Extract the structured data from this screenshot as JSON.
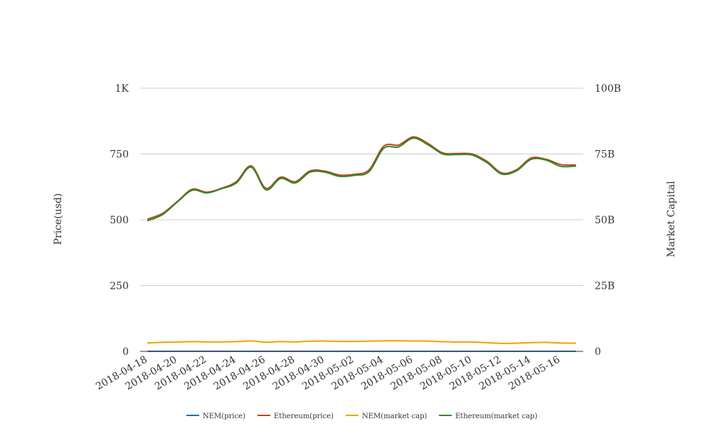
{
  "chart_data": {
    "type": "line",
    "title": "",
    "xlabel": "",
    "ylabel_left": "Price(usd)",
    "ylabel_right": "Market Capital",
    "y_left": {
      "min": 0,
      "max": 1000,
      "ticks": [
        0,
        250,
        500,
        750,
        1000
      ],
      "tick_labels": [
        "0",
        "250",
        "500",
        "750",
        "1K"
      ]
    },
    "y_right": {
      "min": 0,
      "max": 100000000000,
      "ticks": [
        0,
        25000000000,
        50000000000,
        75000000000,
        100000000000
      ],
      "tick_labels": [
        "0",
        "25B",
        "50B",
        "75B",
        "100B"
      ]
    },
    "grid": true,
    "legend_position": "bottom",
    "x": [
      "2018-04-18",
      "2018-04-19",
      "2018-04-20",
      "2018-04-21",
      "2018-04-22",
      "2018-04-23",
      "2018-04-24",
      "2018-04-25",
      "2018-04-26",
      "2018-04-27",
      "2018-04-28",
      "2018-04-29",
      "2018-04-30",
      "2018-05-01",
      "2018-05-02",
      "2018-05-03",
      "2018-05-04",
      "2018-05-05",
      "2018-05-06",
      "2018-05-07",
      "2018-05-08",
      "2018-05-09",
      "2018-05-10",
      "2018-05-11",
      "2018-05-12",
      "2018-05-13",
      "2018-05-14",
      "2018-05-15",
      "2018-05-16",
      "2018-05-17"
    ],
    "x_tick_labels": [
      "2018-04-18",
      "2018-04-20",
      "2018-04-22",
      "2018-04-24",
      "2018-04-26",
      "2018-04-28",
      "2018-04-30",
      "2018-05-02",
      "2018-05-04",
      "2018-05-06",
      "2018-05-08",
      "2018-05-10",
      "2018-05-12",
      "2018-05-14",
      "2018-05-16"
    ],
    "series": [
      {
        "name": "NEM(price)",
        "color": "#2f6aa0",
        "axis": "left",
        "values": [
          0.32,
          0.33,
          0.35,
          0.37,
          0.36,
          0.36,
          0.38,
          0.4,
          0.36,
          0.38,
          0.37,
          0.39,
          0.39,
          0.38,
          0.38,
          0.39,
          0.4,
          0.4,
          0.4,
          0.39,
          0.37,
          0.36,
          0.36,
          0.34,
          0.32,
          0.33,
          0.34,
          0.35,
          0.33,
          0.33
        ]
      },
      {
        "name": "Ethereum(price)",
        "color": "#c0461c",
        "axis": "left",
        "values": [
          503,
          525,
          570,
          616,
          605,
          620,
          645,
          705,
          620,
          662,
          645,
          686,
          685,
          670,
          673,
          690,
          780,
          784,
          815,
          790,
          754,
          752,
          750,
          722,
          678,
          690,
          735,
          730,
          710,
          708
        ]
      },
      {
        "name": "NEM(market cap)",
        "color": "#f0a202",
        "axis": "right",
        "values": [
          3250000000,
          3450000000,
          3550000000,
          3700000000,
          3600000000,
          3600000000,
          3700000000,
          3950000000,
          3500000000,
          3700000000,
          3600000000,
          3850000000,
          3900000000,
          3800000000,
          3800000000,
          3900000000,
          4000000000,
          4000000000,
          3950000000,
          3900000000,
          3700000000,
          3550000000,
          3550000000,
          3300000000,
          3000000000,
          3100000000,
          3300000000,
          3400000000,
          3150000000,
          3100000000
        ]
      },
      {
        "name": "Ethereum(market cap)",
        "color": "#2a8a2a",
        "axis": "right",
        "values": [
          49700000000,
          52000000000,
          56800000000,
          61200000000,
          60200000000,
          61800000000,
          64000000000,
          70000000000,
          61400000000,
          65700000000,
          64000000000,
          68100000000,
          68100000000,
          66500000000,
          66900000000,
          68300000000,
          77200000000,
          77700000000,
          81000000000,
          78500000000,
          75000000000,
          74800000000,
          74600000000,
          71700000000,
          67400000000,
          68600000000,
          73000000000,
          72700000000,
          70300000000,
          70400000000
        ]
      }
    ]
  }
}
